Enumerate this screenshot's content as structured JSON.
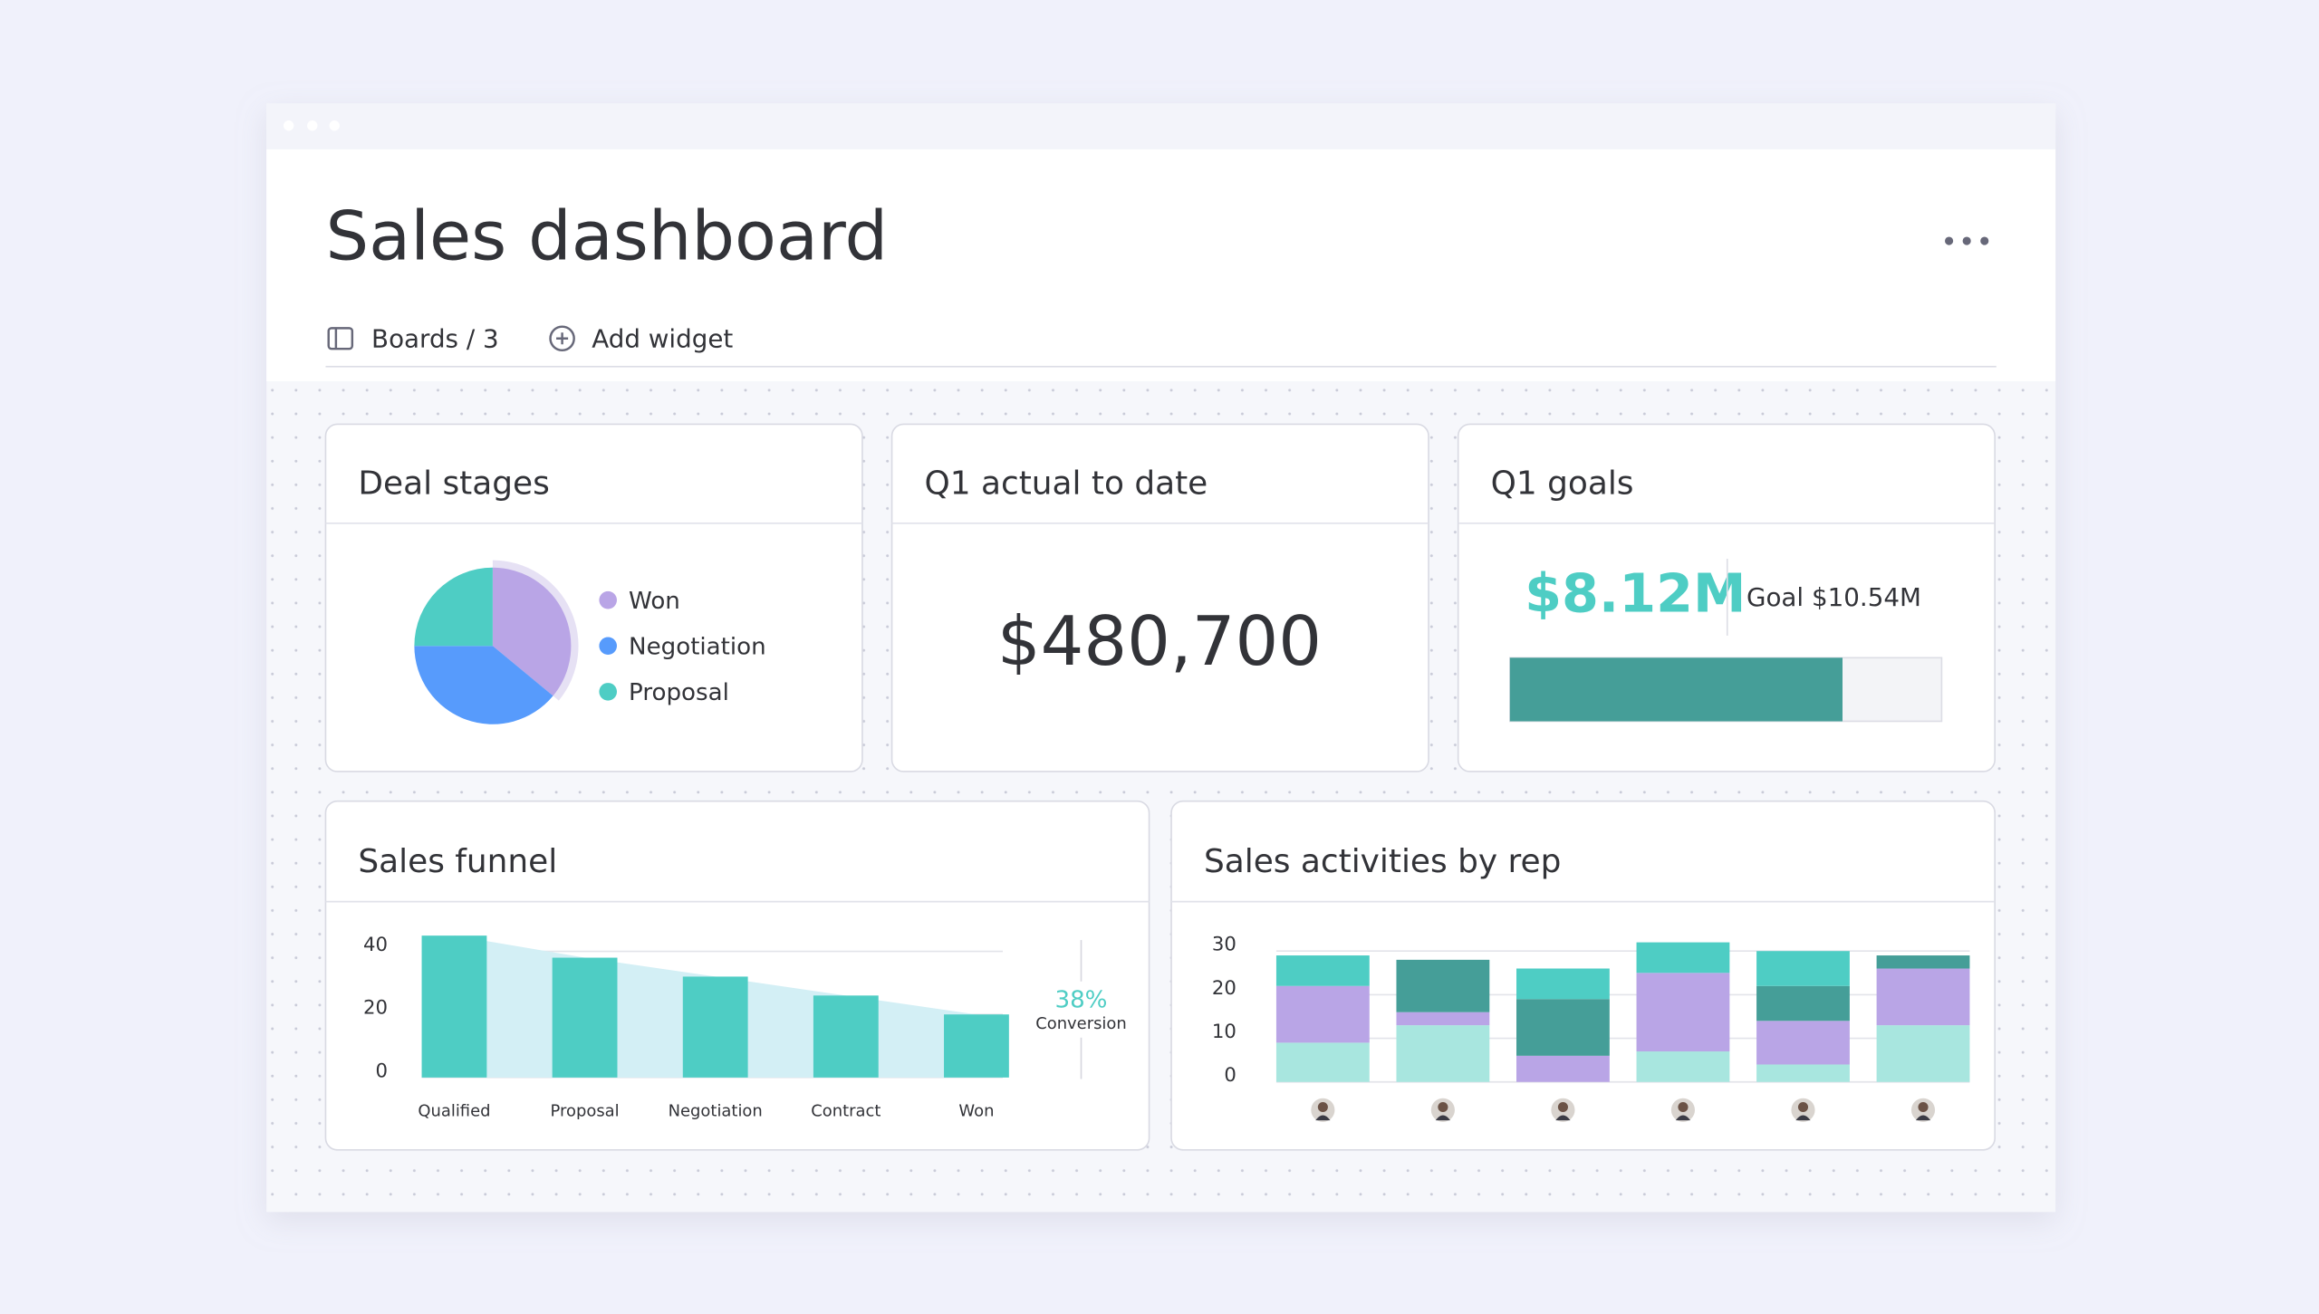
{
  "header": {
    "title": "Sales dashboard"
  },
  "toolbar": {
    "boards": "Boards / 3",
    "add_widget": "Add widget"
  },
  "widgets": {
    "q1_actual": {
      "title": "Q1 actual to date",
      "amount": "$480,700"
    },
    "q1_goals": {
      "title": "Q1 goals",
      "actual": 8.12,
      "actual_label": "$8.12M",
      "goal": 10.54,
      "goal_label": "Goal $10.54M"
    }
  },
  "chart_data": [
    {
      "type": "pie",
      "title": "Deal stages",
      "categories": [
        "Won",
        "Negotiation",
        "Proposal"
      ],
      "values": [
        36,
        39,
        25
      ],
      "colors": [
        "#b9a5e6",
        "#579bfc",
        "#4ecdc4"
      ]
    },
    {
      "type": "bar",
      "title": "Sales funnel",
      "categories": [
        "Qualified",
        "Proposal",
        "Negotiation",
        "Contract",
        "Won"
      ],
      "values": [
        45,
        38,
        32,
        26,
        20
      ],
      "color": "#4ecdc4",
      "area_color": "#d3eff5",
      "ylim": [
        0,
        45
      ],
      "yticks": [
        0,
        20,
        40
      ],
      "grid": true,
      "annotation": {
        "value": "38%",
        "label": "Conversion"
      }
    },
    {
      "type": "stacked_bar",
      "title": "Sales activities by rep",
      "categories": [
        null,
        null,
        null,
        null,
        null,
        null
      ],
      "series": [
        {
          "color": "#a8e6df",
          "values": [
            9,
            13,
            0,
            7,
            4,
            13
          ]
        },
        {
          "color": "#b9a5e6",
          "values": [
            13,
            3,
            6,
            18,
            10,
            13
          ]
        },
        {
          "color": "#459e98",
          "values": [
            0,
            12,
            13,
            0,
            8,
            3
          ]
        },
        {
          "color": "#4ecdc4",
          "values": [
            7,
            0,
            7,
            7,
            8,
            0
          ]
        }
      ],
      "ylim": [
        0,
        33
      ],
      "yticks": [
        0,
        10,
        20,
        30
      ],
      "grid": true
    }
  ]
}
